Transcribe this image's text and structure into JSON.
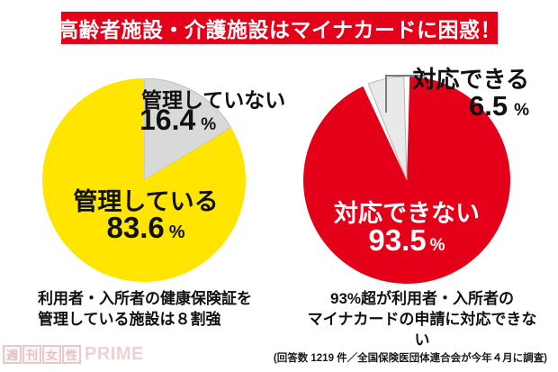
{
  "header": {
    "title": "高齢者施設・介護施設はマイナカードに困惑！",
    "bg_color": "#e50019",
    "text_color": "#ffffff"
  },
  "left_chart": {
    "minor_label": "管理していない",
    "minor_value": "16.4",
    "minor_unit": "%",
    "major_label": "管理している",
    "major_value": "83.6",
    "major_unit": "%",
    "caption_line1": "利用者・入所者の健康保険証を",
    "caption_line2": "管理している施設は８割強"
  },
  "right_chart": {
    "minor_label": "対応できる",
    "minor_value": "6.5",
    "minor_unit": "%",
    "major_label": "対応できない",
    "major_value": "93.5",
    "major_unit": "%",
    "caption_line1": "93%超が利用者・入所者の",
    "caption_line2": "マイナカードの申請に対応できない"
  },
  "source_note": "(回答数 1219 件／全国保険医団体連合会が今年４月に調査)",
  "watermark": {
    "c1": "週",
    "c2": "刊",
    "c3": "女",
    "c4": "性",
    "brand": "PRIME"
  },
  "colors": {
    "accent_red": "#e50019",
    "pie_yellow": "#ffe500",
    "pie_gray_left": "#d9d9d9",
    "pie_gray_right": "#e9e9e9",
    "callout_gray": "#7a7a7a"
  },
  "chart_data": [
    {
      "type": "pie",
      "position": "left",
      "segments": [
        {
          "label": "管理していない",
          "value": 16.4,
          "color": "#d9d9d9",
          "stroke": "#bdbdbd"
        },
        {
          "label": "管理している",
          "value": 83.6,
          "color": "#ffe500"
        }
      ],
      "start_angle_deg": 0,
      "pad_deg": 0,
      "unit": "%",
      "caption": "利用者・入所者の健康保険証を管理している施設は８割強",
      "legend": "none",
      "labels_inside": true
    },
    {
      "type": "pie",
      "position": "right",
      "segments": [
        {
          "label": "対応できない",
          "value": 93.5,
          "color": "#e50019"
        },
        {
          "label": "対応できる",
          "value": 6.5,
          "color": "#e9e9e9",
          "stroke": "#b5b5b5"
        }
      ],
      "start_angle_deg": 0,
      "pad_deg": 1.6,
      "unit": "%",
      "caption": "93%超が利用者・入所者のマイナカードの申請に対応できない",
      "legend": "none",
      "labels_inside": true
    }
  ]
}
